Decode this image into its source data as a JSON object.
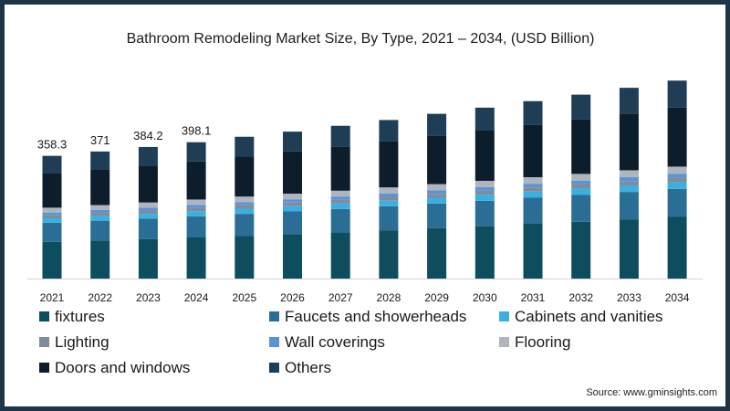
{
  "chart_data": {
    "type": "bar",
    "stacked": true,
    "title": "Bathroom Remodeling Market Size, By Type, 2021 – 2034, (USD Billion)",
    "categories": [
      "2021",
      "2022",
      "2023",
      "2024",
      "2025",
      "2026",
      "2027",
      "2028",
      "2029",
      "2030",
      "2031",
      "2032",
      "2033",
      "2034"
    ],
    "totals": [
      358.3,
      371,
      384.2,
      398.1,
      414,
      430,
      446,
      463,
      481,
      499,
      518,
      537,
      557,
      578
    ],
    "total_labels": [
      "358.3",
      "371",
      "384.2",
      "398.1",
      "",
      "",
      "",
      "",
      "",
      "",
      "",
      "",
      "",
      ""
    ],
    "series": [
      {
        "name": "fixtures",
        "color": "#0e4d5e",
        "values": [
          107,
          111,
          115,
          120,
          125,
          130,
          135,
          141,
          147,
          153,
          160,
          166,
          173,
          180
        ]
      },
      {
        "name": "Faucets and showerheads",
        "color": "#2a6e96",
        "values": [
          56,
          58,
          60,
          62,
          64,
          66,
          68,
          70,
          72,
          74,
          76,
          78,
          80,
          82
        ]
      },
      {
        "name": "Cabinets and vanities",
        "color": "#3ab0e2",
        "values": [
          13,
          13.5,
          14,
          14.5,
          15,
          15.5,
          16,
          16.5,
          17,
          17.5,
          18,
          18.5,
          19,
          19.5
        ]
      },
      {
        "name": "Lighting",
        "color": "#7f8c99",
        "values": [
          9,
          9.3,
          9.6,
          9.9,
          10.2,
          10.5,
          10.8,
          11.1,
          11.4,
          11.7,
          12,
          12.3,
          12.6,
          12.9
        ]
      },
      {
        "name": "Wall coverings",
        "color": "#5b94d6",
        "values": [
          8,
          8.3,
          8.6,
          8.9,
          9.2,
          9.5,
          9.8,
          10.1,
          10.4,
          10.7,
          11,
          11.3,
          11.6,
          11.9
        ]
      },
      {
        "name": "Flooring",
        "color": "#aeb5bc",
        "values": [
          14,
          14.5,
          15,
          15.5,
          16,
          16.5,
          17,
          17.5,
          18,
          18.5,
          19,
          19.5,
          20,
          20.5
        ]
      },
      {
        "name": "Doors and windows",
        "color": "#0c1d2b",
        "values": [
          101.3,
          104.4,
          108,
          111.3,
          117.6,
          123,
          128.4,
          134.8,
          141.2,
          146.6,
          153,
          159.4,
          165.8,
          172.2
        ]
      },
      {
        "name": "Others",
        "color": "#1f3e55",
        "values": [
          50,
          52,
          54,
          56,
          57,
          58,
          61,
          62,
          64,
          67,
          69,
          72,
          75,
          79
        ]
      }
    ],
    "legend_position": "bottom",
    "grid": false,
    "ylim": [
      0,
      600
    ]
  },
  "source": "Source: www.gminsights.com"
}
